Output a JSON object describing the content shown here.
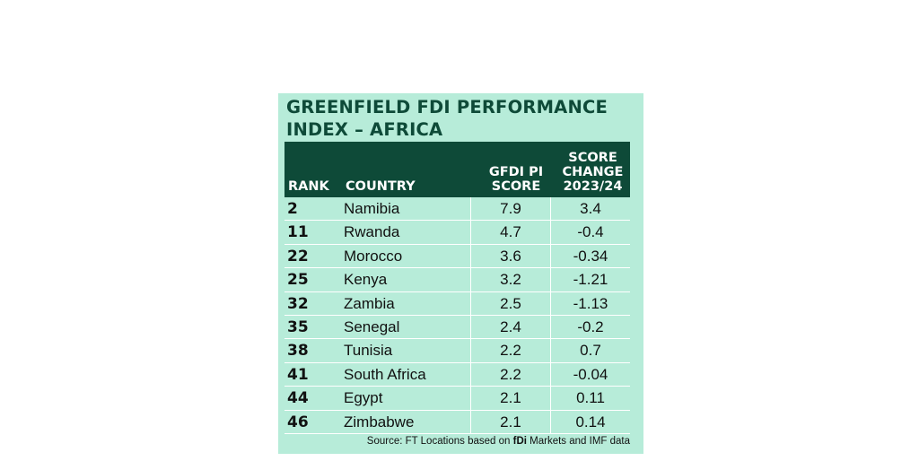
{
  "colors": {
    "background": "#b7ecd9",
    "header_bg": "#0e4a38",
    "title": "#0e4a38",
    "header_text": "#ffffff"
  },
  "chart_data": {
    "type": "table",
    "title": "GREENFIELD FDI PERFORMANCE INDEX – AFRICA",
    "columns": [
      "RANK",
      "COUNTRY",
      "GFDI PI SCORE",
      "SCORE CHANGE 2023/24"
    ],
    "rows": [
      {
        "rank": "2",
        "country": "Namibia",
        "score": "7.9",
        "change": "3.4"
      },
      {
        "rank": "11",
        "country": "Rwanda",
        "score": "4.7",
        "change": "-0.4"
      },
      {
        "rank": "22",
        "country": "Morocco",
        "score": "3.6",
        "change": "-0.34"
      },
      {
        "rank": "25",
        "country": "Kenya",
        "score": "3.2",
        "change": "-1.21"
      },
      {
        "rank": "32",
        "country": "Zambia",
        "score": "2.5",
        "change": "-1.13"
      },
      {
        "rank": "35",
        "country": "Senegal",
        "score": "2.4",
        "change": "-0.2"
      },
      {
        "rank": "38",
        "country": "Tunisia",
        "score": "2.2",
        "change": "0.7"
      },
      {
        "rank": "41",
        "country": "South Africa",
        "score": "2.2",
        "change": "-0.04"
      },
      {
        "rank": "44",
        "country": "Egypt",
        "score": "2.1",
        "change": "0.11"
      },
      {
        "rank": "46",
        "country": "Zimbabwe",
        "score": "2.1",
        "change": "0.14"
      }
    ],
    "source": {
      "prefix": "Source: FT Locations based on ",
      "brand": "fDi",
      "suffix": " Markets and IMF data"
    }
  },
  "header": {
    "rank": "RANK",
    "country": "COUNTRY",
    "score_line1": "GFDI PI",
    "score_line2": "SCORE",
    "change_line1": "SCORE",
    "change_line2": "CHANGE",
    "change_line3": "2023/24"
  }
}
